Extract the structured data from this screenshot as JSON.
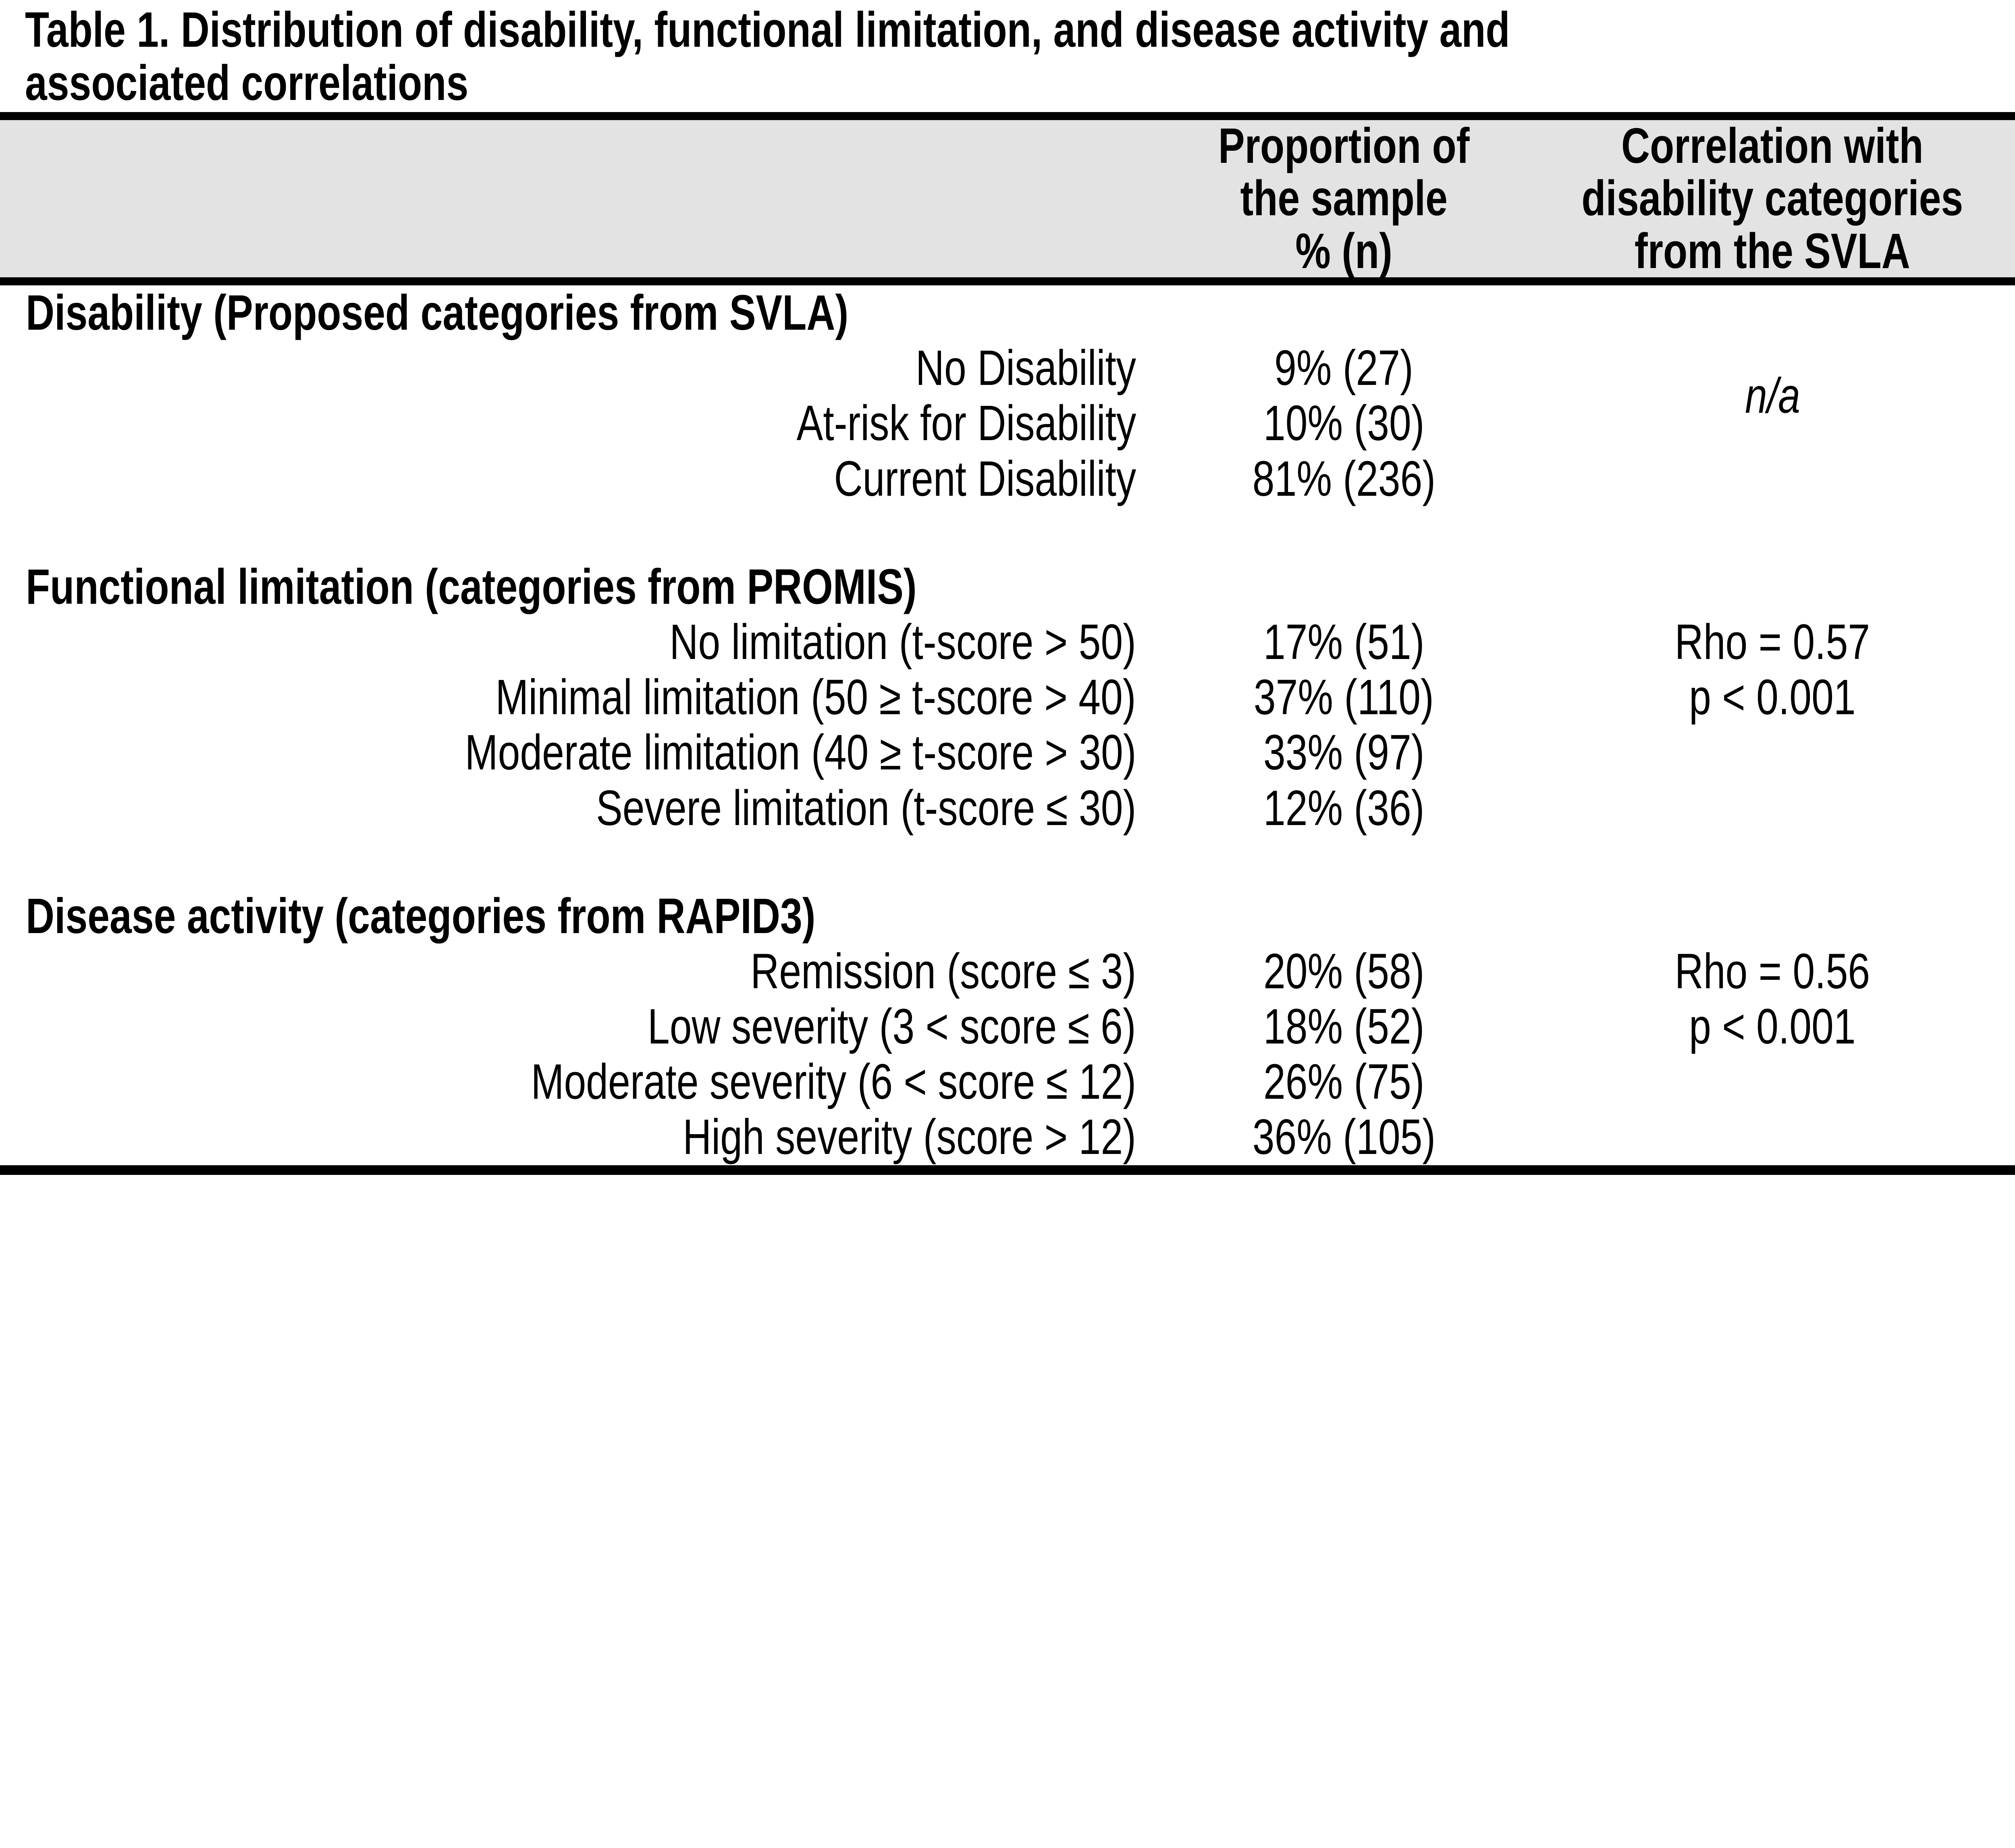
{
  "table": {
    "title": "Table 1. Distribution of disability, functional limitation, and disease activity and\nassociated correlations",
    "columns": [
      {
        "label": "Proportion of\nthe sample\n% (n)"
      },
      {
        "label": "Correlation with\ndisability categories\nfrom the SVLA"
      }
    ],
    "sections": [
      {
        "label": "Disability (Proposed categories from SVLA)",
        "rows": [
          {
            "label": "No Disability",
            "value": "9% (27)"
          },
          {
            "label": "At-risk for Disability",
            "value": "10% (30)"
          },
          {
            "label": "Current Disability",
            "value": "81% (236)"
          }
        ],
        "correlation": "n/a"
      },
      {
        "label": "Functional limitation (categories from PROMIS)",
        "rows": [
          {
            "label": "No limitation (t-score > 50)",
            "value": "17% (51)"
          },
          {
            "label": "Minimal limitation (50 ≥ t-score > 40)",
            "value": "37% (110)"
          },
          {
            "label": "Moderate limitation (40 ≥ t-score > 30)",
            "value": "33% (97)"
          },
          {
            "label": "Severe limitation (t-score ≤ 30)",
            "value": "12% (36)"
          }
        ],
        "correlation": "Rho = 0.57\np < 0.001"
      },
      {
        "label": "Disease activity (categories from RAPID3)",
        "rows": [
          {
            "label": "Remission (score ≤ 3)",
            "value": "20% (58)"
          },
          {
            "label": "Low severity (3 < score ≤ 6)",
            "value": "18% (52)"
          },
          {
            "label": "Moderate severity (6 < score ≤ 12)",
            "value": "26% (75)"
          },
          {
            "label": "High severity (score > 12)",
            "value": "36% (105)"
          }
        ],
        "correlation": "Rho = 0.56\np < 0.001"
      }
    ],
    "colors": {
      "header_band": "#e3e3e3",
      "rule": "#000000",
      "text": "#000000",
      "background": "#ffffff"
    }
  }
}
